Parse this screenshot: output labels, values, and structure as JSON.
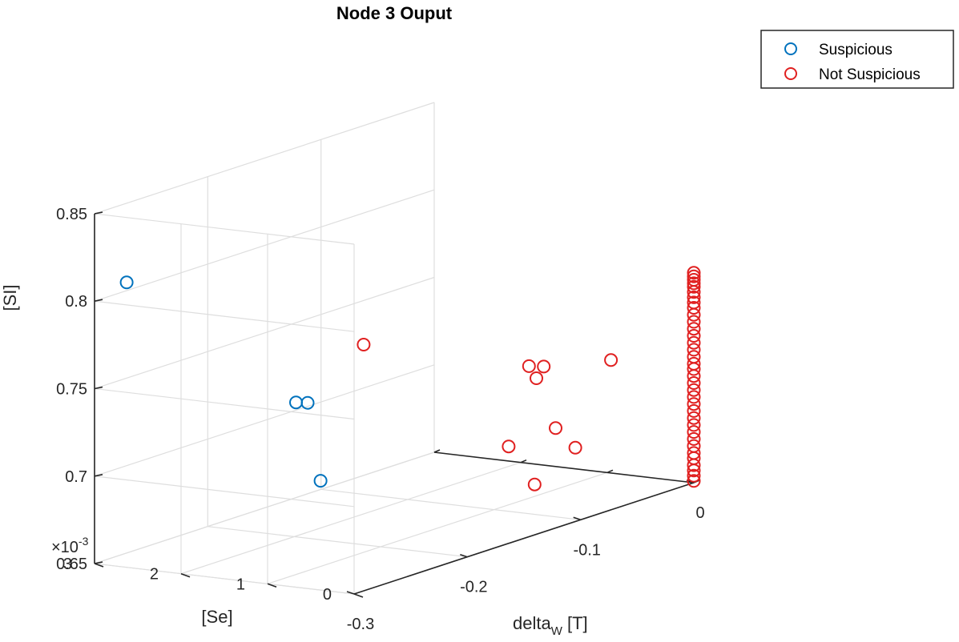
{
  "chart_data": {
    "type": "scatter",
    "title": "Node 3 Ouput",
    "xlabel_base": "delta",
    "xlabel_sub": "W",
    "xlabel_unit": " [T]",
    "ylabel": "[Se]",
    "zlabel": "[SI]",
    "y_exponent_prefix": "×10",
    "y_exponent_power": "-3",
    "xlim": [
      -0.3,
      0
    ],
    "ylim": [
      0,
      0.003
    ],
    "zlim": [
      0.65,
      0.85
    ],
    "x_ticks": [
      {
        "value": -0.3,
        "label": "-0.3"
      },
      {
        "value": -0.2,
        "label": "-0.2"
      },
      {
        "value": -0.1,
        "label": "-0.1"
      },
      {
        "value": 0,
        "label": "0"
      }
    ],
    "y_ticks": [
      {
        "value": 0,
        "label": "0"
      },
      {
        "value": 0.001,
        "label": "1"
      },
      {
        "value": 0.002,
        "label": "2"
      },
      {
        "value": 0.003,
        "label": "3"
      }
    ],
    "z_ticks": [
      {
        "value": 0.65,
        "label": "0.65"
      },
      {
        "value": 0.7,
        "label": "0.7"
      },
      {
        "value": 0.75,
        "label": "0.75"
      },
      {
        "value": 0.8,
        "label": "0.8"
      },
      {
        "value": 0.85,
        "label": "0.85"
      }
    ],
    "grid": true,
    "legend_position": "top-right",
    "series": [
      {
        "name": "Suspicious",
        "color": "#0072BD",
        "points": [
          {
            "x": -0.29,
            "y": 0.00276,
            "z": 0.81
          },
          {
            "x": -0.15,
            "y": 0.0025,
            "z": 0.713
          },
          {
            "x": -0.145,
            "y": 0.0027,
            "z": 0.711
          },
          {
            "x": -0.215,
            "y": 0.0015,
            "z": 0.688
          }
        ]
      },
      {
        "name": "Not Suspicious",
        "color": "#E02020",
        "points": [
          {
            "x": -0.07,
            "y": 0.0029,
            "z": 0.727
          },
          {
            "x": -0.05,
            "y": 0.00125,
            "z": 0.72
          },
          {
            "x": -0.055,
            "y": 0.0011,
            "z": 0.715
          },
          {
            "x": -0.037,
            "y": 0.00125,
            "z": 0.717
          },
          {
            "x": -0.08,
            "y": 0.00055,
            "z": 0.695
          },
          {
            "x": -0.11,
            "y": 0.0007,
            "z": 0.69
          },
          {
            "x": -0.097,
            "y": 0.0001,
            "z": 0.69
          },
          {
            "x": -0.11,
            "y": 0.0004,
            "z": 0.67
          },
          {
            "x": -0.012,
            "y": 0.0008,
            "z": 0.718
          },
          {
            "x": 0,
            "y": 0,
            "z": 0.651
          },
          {
            "x": 0,
            "y": 0,
            "z": 0.654
          },
          {
            "x": 0,
            "y": 0,
            "z": 0.657
          },
          {
            "x": 0,
            "y": 0,
            "z": 0.66
          },
          {
            "x": 0,
            "y": 0,
            "z": 0.664
          },
          {
            "x": 0,
            "y": 0,
            "z": 0.667
          },
          {
            "x": 0,
            "y": 0,
            "z": 0.671
          },
          {
            "x": 0,
            "y": 0,
            "z": 0.675
          },
          {
            "x": 0,
            "y": 0,
            "z": 0.679
          },
          {
            "x": 0,
            "y": 0,
            "z": 0.683
          },
          {
            "x": 0,
            "y": 0,
            "z": 0.687
          },
          {
            "x": 0,
            "y": 0,
            "z": 0.691
          },
          {
            "x": 0,
            "y": 0,
            "z": 0.695
          },
          {
            "x": 0,
            "y": 0,
            "z": 0.699
          },
          {
            "x": 0,
            "y": 0,
            "z": 0.703
          },
          {
            "x": 0,
            "y": 0,
            "z": 0.707
          },
          {
            "x": 0,
            "y": 0,
            "z": 0.711
          },
          {
            "x": 0,
            "y": 0,
            "z": 0.715
          },
          {
            "x": 0,
            "y": 0,
            "z": 0.718
          },
          {
            "x": 0,
            "y": 0,
            "z": 0.722
          },
          {
            "x": 0,
            "y": 0,
            "z": 0.726
          },
          {
            "x": 0,
            "y": 0,
            "z": 0.73
          },
          {
            "x": 0,
            "y": 0,
            "z": 0.734
          },
          {
            "x": 0,
            "y": 0,
            "z": 0.738
          },
          {
            "x": 0,
            "y": 0,
            "z": 0.742
          },
          {
            "x": 0,
            "y": 0,
            "z": 0.746
          },
          {
            "x": 0,
            "y": 0,
            "z": 0.75
          },
          {
            "x": 0,
            "y": 0,
            "z": 0.753
          },
          {
            "x": 0,
            "y": 0,
            "z": 0.756
          },
          {
            "x": 0,
            "y": 0,
            "z": 0.759
          },
          {
            "x": 0,
            "y": 0,
            "z": 0.762
          },
          {
            "x": 0,
            "y": 0,
            "z": 0.764
          },
          {
            "x": 0,
            "y": 0,
            "z": 0.766
          },
          {
            "x": 0,
            "y": 0,
            "z": 0.768
          },
          {
            "x": 0,
            "y": 0,
            "z": 0.77
          }
        ]
      }
    ]
  }
}
